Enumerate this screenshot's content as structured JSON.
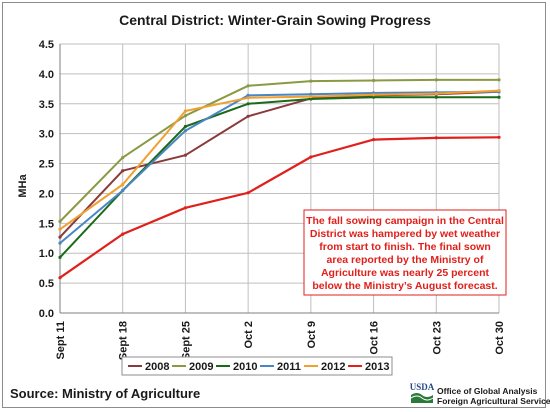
{
  "chart_data": {
    "type": "line",
    "title": "Central District: Winter-Grain Sowing Progress",
    "ylabel": "MHa",
    "xlabel": "",
    "categories": [
      "Sept 11",
      "Sept 18",
      "Sept 25",
      "Oct 2",
      "Oct 9",
      "Oct 16",
      "Oct 23",
      "Oct 30"
    ],
    "ylim": [
      0,
      4.5
    ],
    "yticks": [
      "0.0",
      "0.5",
      "1.0",
      "1.5",
      "2.0",
      "2.5",
      "3.0",
      "3.5",
      "4.0",
      "4.5"
    ],
    "grid": true,
    "legend_position": "bottom",
    "series": [
      {
        "name": "2008",
        "color": "#8b3a3a",
        "values": [
          1.27,
          2.38,
          2.64,
          3.29,
          3.59,
          3.64,
          3.66,
          3.7
        ]
      },
      {
        "name": "2009",
        "color": "#8a9a43",
        "values": [
          1.53,
          2.6,
          3.3,
          3.8,
          3.88,
          3.89,
          3.9,
          3.9
        ]
      },
      {
        "name": "2010",
        "color": "#1a6a1a",
        "values": [
          0.93,
          2.05,
          3.12,
          3.5,
          3.58,
          3.61,
          3.61,
          3.61
        ]
      },
      {
        "name": "2011",
        "color": "#4a86c4",
        "values": [
          1.17,
          2.05,
          3.05,
          3.64,
          3.66,
          3.68,
          3.69,
          3.7
        ]
      },
      {
        "name": "2012",
        "color": "#f0a030",
        "values": [
          1.4,
          2.15,
          3.38,
          3.6,
          3.62,
          3.65,
          3.67,
          3.72
        ]
      },
      {
        "name": "2013",
        "color": "#e0201b",
        "values": [
          0.59,
          1.32,
          1.76,
          2.01,
          2.61,
          2.9,
          2.93,
          2.94
        ]
      }
    ],
    "annotation": {
      "lines": [
        "The fall sowing campaign in the Central",
        "District was hampered by wet weather",
        "from start to finish.   The final sown",
        "area reported by the Ministry of",
        "Agriculture was nearly 25 percent",
        "below the Ministry’s August forecast."
      ]
    }
  },
  "footer": {
    "source": "Source:  Ministry of Agriculture",
    "logo_text": "USDA",
    "agency_line1": "Office of Global Analysis",
    "agency_line2": "Foreign Agricultural Service"
  }
}
